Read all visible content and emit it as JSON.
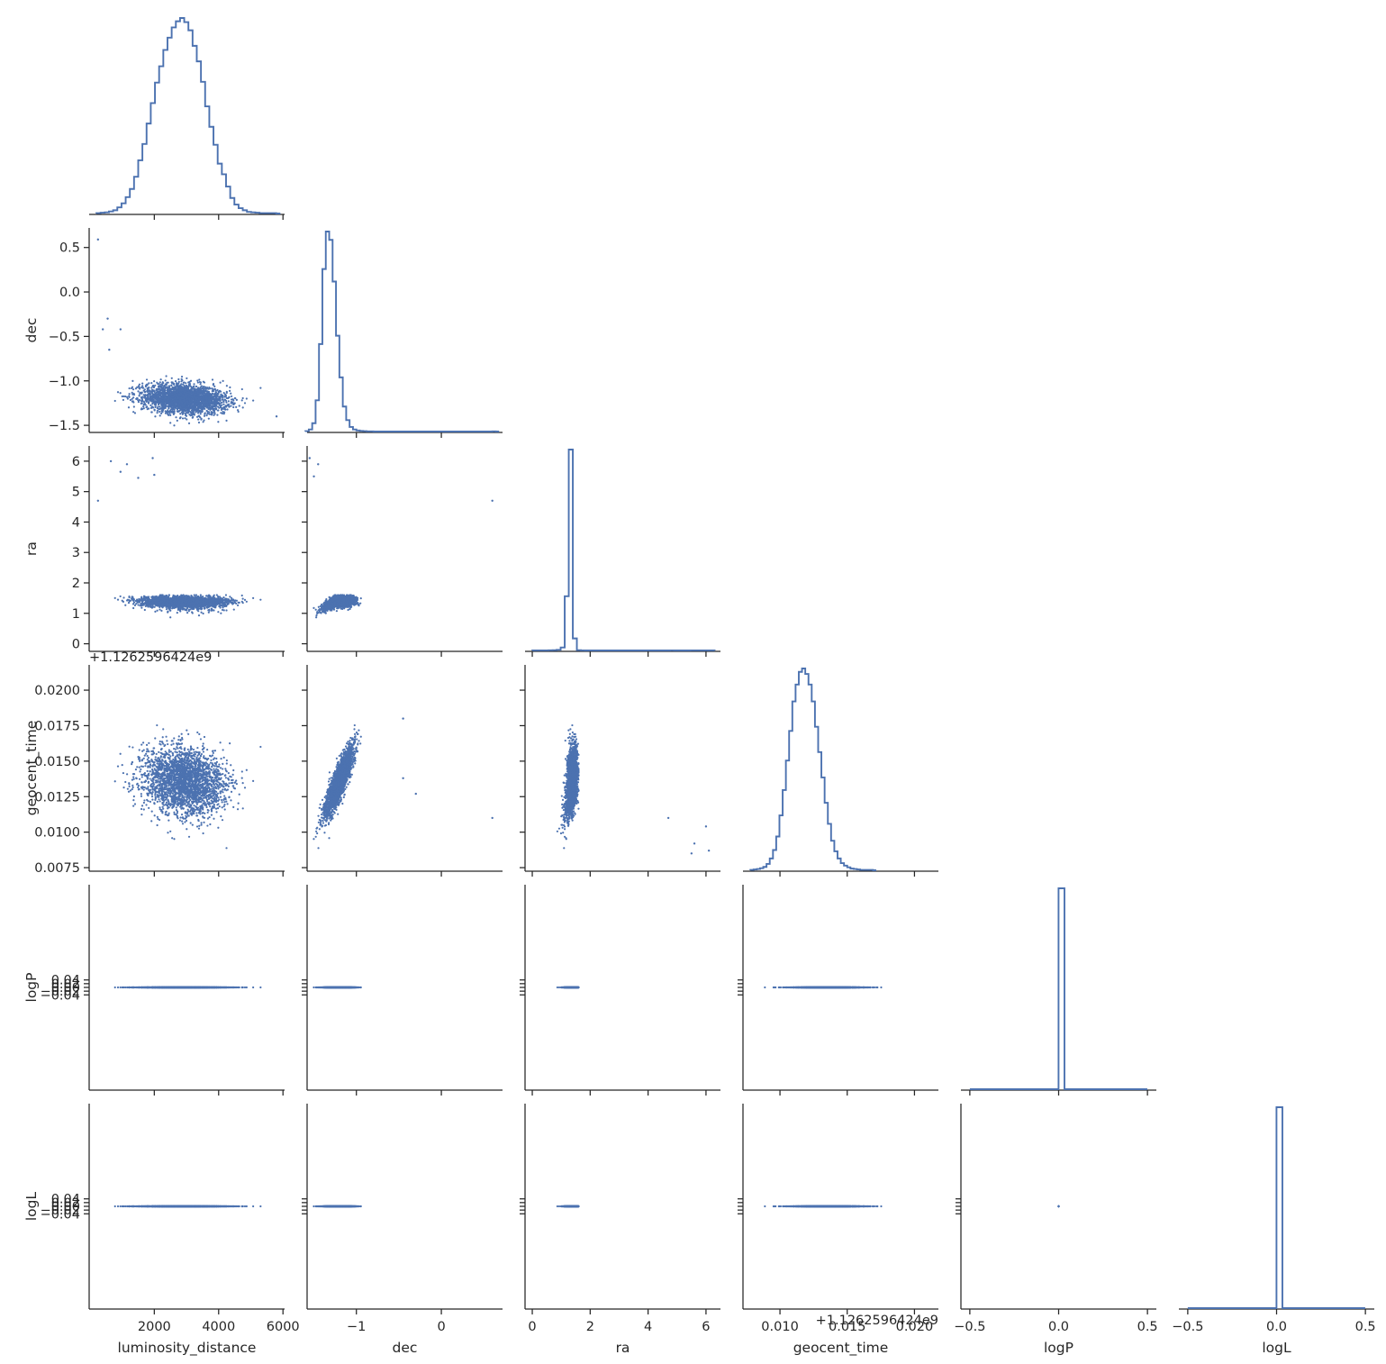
{
  "chart_data": {
    "type": "scatter",
    "layout": "corner pair plot (lower triangle scatter, diagonal step histograms)",
    "color": "#4c72b0",
    "variables": [
      "luminosity_distance",
      "dec",
      "ra",
      "geocent_time",
      "logP",
      "logL"
    ],
    "xlabels": [
      "luminosity_distance",
      "dec",
      "ra",
      "geocent_time",
      "logP",
      "logL"
    ],
    "ylabels": [
      "",
      "dec",
      "ra",
      "geocent_time",
      "logP",
      "logL"
    ],
    "geocent_time_offset": "+1.1262596424e9",
    "ticks": {
      "luminosity_distance": [
        "2000",
        "4000",
        "6000"
      ],
      "dec": [
        "−1",
        "0"
      ],
      "dec_y": [
        "0.5",
        "0.0",
        "−0.5",
        "−1.0",
        "−1.5"
      ],
      "ra": [
        "0",
        "2",
        "4",
        "6"
      ],
      "ra_y": [
        "6",
        "5",
        "4",
        "3",
        "2",
        "1",
        "0"
      ],
      "geocent_time": [
        "0.010",
        "0.015",
        "0.020"
      ],
      "geocent_time_y": [
        "0.0200",
        "0.0175",
        "0.0150",
        "0.0125",
        "0.0100",
        "0.0075"
      ],
      "logP": [
        "−0.5",
        "0.0",
        "0.5"
      ],
      "logP_y": [
        "0.04",
        "0.02",
        "0.00",
        "−0.02",
        "−0.04"
      ],
      "logL": [
        "−0.5",
        "0.0",
        "0.5"
      ],
      "logL_y": [
        "0.04",
        "0.02",
        "0.00",
        "−0.02",
        "−0.04"
      ]
    },
    "ranges": {
      "luminosity_distance": [
        -25,
        6050
      ],
      "dec": [
        -1.58,
        0.72
      ],
      "ra": [
        -0.25,
        6.5
      ],
      "geocent_time": [
        0.00725,
        0.02178
      ],
      "logP": [
        -0.55,
        0.55
      ],
      "logL": [
        -0.55,
        0.55
      ]
    },
    "distributions": {
      "luminosity_distance": {
        "mean": 2950,
        "std": 650
      },
      "dec": {
        "mean": -1.2,
        "std": 0.1
      },
      "ra": {
        "mean": 1.4,
        "std": 0.1
      },
      "geocent_time": {
        "mean": 0.0136,
        "std": 0.0017
      },
      "logP": {
        "value": 0.0
      },
      "logL": {
        "value": 0.0
      }
    },
    "outliers": {
      "luminosity_distance_dec": [
        [
          250,
          0.59
        ],
        [
          400,
          -0.42
        ],
        [
          550,
          -0.3
        ],
        [
          950,
          -0.42
        ],
        [
          600,
          -0.65
        ],
        [
          5800,
          -1.4
        ]
      ],
      "luminosity_distance_ra": [
        [
          250,
          4.7
        ],
        [
          650,
          6.0
        ],
        [
          950,
          5.65
        ],
        [
          1150,
          5.9
        ],
        [
          1500,
          5.45
        ],
        [
          1950,
          6.1
        ],
        [
          2000,
          5.55
        ]
      ],
      "dec_ra": [
        [
          -1.55,
          6.1
        ],
        [
          -1.45,
          5.9
        ],
        [
          -1.5,
          5.5
        ],
        [
          0.6,
          4.7
        ]
      ],
      "ra_geocent_time": [
        [
          4.7,
          0.011
        ],
        [
          5.5,
          0.0085
        ],
        [
          5.6,
          0.0092
        ],
        [
          6.0,
          0.0104
        ],
        [
          6.1,
          0.0087
        ]
      ],
      "dec_geocent_time": [
        [
          -0.45,
          0.018
        ],
        [
          -0.45,
          0.0138
        ],
        [
          -0.3,
          0.0127
        ],
        [
          0.6,
          0.011
        ]
      ]
    },
    "histograms": {
      "luminosity_distance": {
        "edges_start": 200,
        "bin_width": 130,
        "counts": [
          1,
          2,
          3,
          5,
          8,
          15,
          25,
          40,
          60,
          90,
          130,
          170,
          220,
          270,
          320,
          360,
          400,
          430,
          455,
          470,
          478,
          468,
          448,
          410,
          372,
          322,
          262,
          212,
          168,
          122,
          96,
          66,
          38,
          22,
          13,
          8,
          4,
          3,
          2,
          1,
          1,
          1,
          1,
          0
        ]
      },
      "dec": {
        "edges_start": -1.6,
        "bin_width": 0.04,
        "counts": [
          2,
          10,
          40,
          150,
          420,
          780,
          960,
          920,
          720,
          460,
          260,
          120,
          55,
          22,
          10,
          5,
          3,
          2,
          1,
          1,
          0,
          0,
          0,
          0,
          0,
          0,
          0,
          0,
          0,
          0,
          0,
          0,
          0,
          0,
          0,
          0,
          0,
          0,
          0,
          0,
          0,
          0,
          0,
          0,
          0,
          0,
          0,
          0,
          0,
          0,
          0,
          0,
          0,
          0,
          0,
          1,
          0
        ]
      },
      "ra": {
        "edges_start": 0.0,
        "bin_width": 0.14,
        "counts": [
          1,
          1,
          1,
          1,
          2,
          3,
          6,
          30,
          540,
          2000,
          120,
          3,
          1,
          0,
          0,
          0,
          0,
          0,
          0,
          0,
          0,
          0,
          0,
          0,
          0,
          0,
          0,
          0,
          0,
          0,
          0,
          0,
          0,
          0,
          1,
          0,
          0,
          0,
          0,
          1,
          1,
          1,
          1,
          1,
          1
        ]
      },
      "geocent_time": {
        "edges_start": 0.0078,
        "bin_width": 0.00024,
        "counts": [
          1,
          2,
          3,
          5,
          8,
          15,
          28,
          48,
          80,
          130,
          190,
          260,
          330,
          400,
          440,
          470,
          478,
          465,
          440,
          400,
          340,
          280,
          220,
          160,
          110,
          70,
          45,
          28,
          17,
          11,
          7,
          4,
          3,
          2,
          1,
          1,
          1,
          1,
          0
        ]
      },
      "logP": {
        "edges_start": -0.5,
        "bin_width": 0.0333,
        "counts": [
          0,
          0,
          0,
          0,
          0,
          0,
          0,
          0,
          0,
          0,
          0,
          0,
          0,
          0,
          0,
          10000,
          0,
          0,
          0,
          0,
          0,
          0,
          0,
          0,
          0,
          0,
          0,
          0,
          0,
          0
        ]
      },
      "logL": {
        "edges_start": -0.5,
        "bin_width": 0.0333,
        "counts": [
          0,
          0,
          0,
          0,
          0,
          0,
          0,
          0,
          0,
          0,
          0,
          0,
          0,
          0,
          0,
          10000,
          0,
          0,
          0,
          0,
          0,
          0,
          0,
          0,
          0,
          0,
          0,
          0,
          0,
          0
        ]
      }
    }
  }
}
